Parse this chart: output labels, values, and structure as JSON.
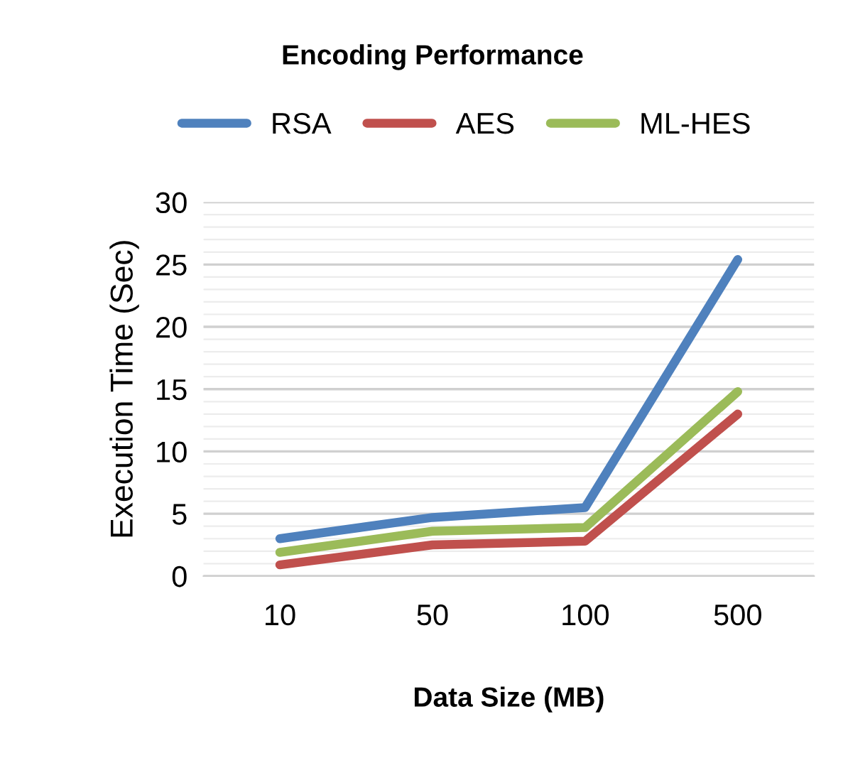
{
  "chart_data": {
    "type": "line",
    "title": "Encoding Performance",
    "xlabel": "Data Size (MB)",
    "ylabel": "Execution Time (Sec)",
    "categories": [
      "10",
      "50",
      "100",
      "500"
    ],
    "series": [
      {
        "name": "RSA",
        "color": "#4f81bd",
        "values": [
          3.0,
          4.7,
          5.5,
          25.4
        ]
      },
      {
        "name": "AES",
        "color": "#c0504d",
        "values": [
          0.9,
          2.5,
          2.8,
          13.0
        ]
      },
      {
        "name": "ML-HES",
        "color": "#9bbb59",
        "values": [
          1.9,
          3.6,
          3.9,
          14.8
        ]
      }
    ],
    "ylim": [
      0,
      30
    ],
    "yticks": [
      0,
      5,
      10,
      15,
      20,
      25,
      30
    ],
    "grid": "y",
    "legend": "top",
    "marker": "none",
    "line_style": "solid"
  }
}
